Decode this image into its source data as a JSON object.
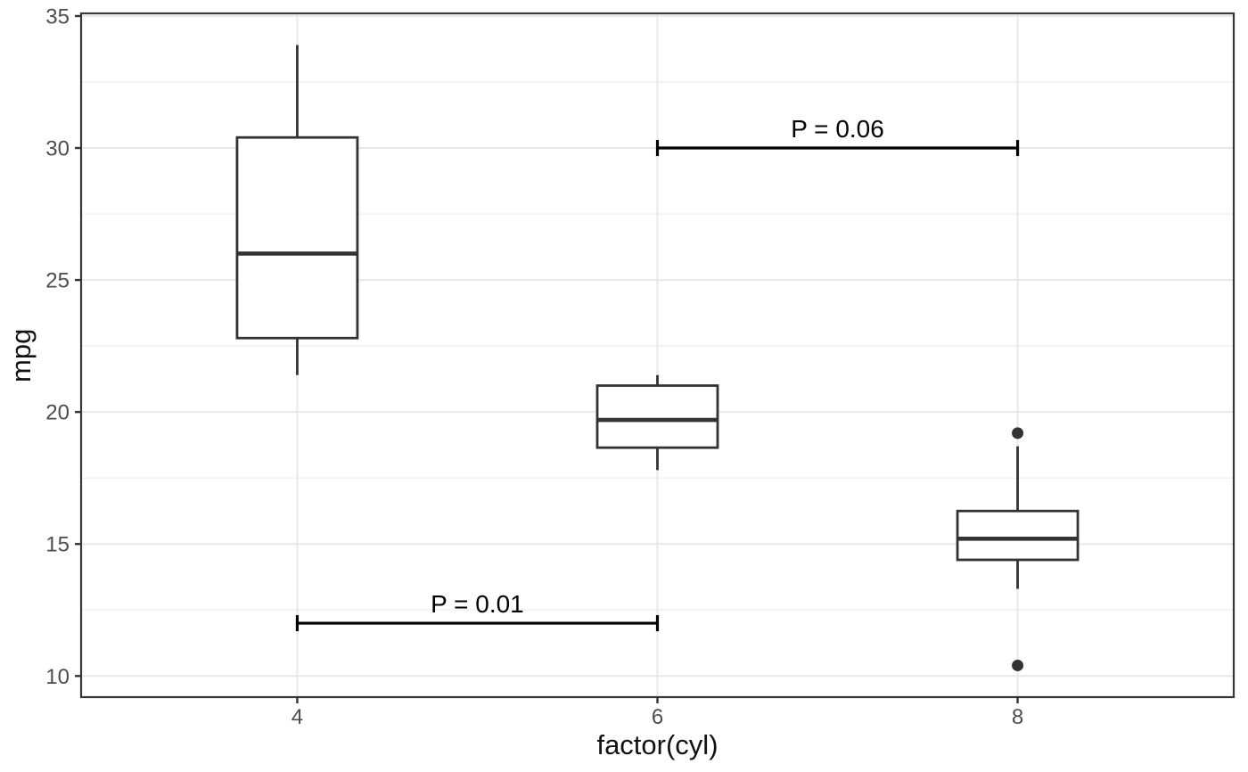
{
  "chart_data": {
    "type": "boxplot",
    "title": "",
    "xlabel": "factor(cyl)",
    "ylabel": "mpg",
    "categories": [
      "4",
      "6",
      "8"
    ],
    "ylim": [
      9.2,
      35.1
    ],
    "yticks": [
      10,
      15,
      20,
      25,
      30,
      35
    ],
    "yticks_minor": [
      12.5,
      17.5,
      22.5,
      27.5,
      32.5
    ],
    "grid": "major-and-minor-horizontal, major-vertical-at-categories",
    "legend": "none",
    "boxes": [
      {
        "category": "4",
        "lower_whisker": 21.4,
        "q1": 22.8,
        "median": 26.0,
        "q3": 30.4,
        "upper_whisker": 33.9,
        "outliers": []
      },
      {
        "category": "6",
        "lower_whisker": 17.8,
        "q1": 18.65,
        "median": 19.7,
        "q3": 21.0,
        "upper_whisker": 21.4,
        "outliers": []
      },
      {
        "category": "8",
        "lower_whisker": 13.3,
        "q1": 14.4,
        "median": 15.2,
        "q3": 16.25,
        "upper_whisker": 18.7,
        "outliers": [
          19.2,
          10.4
        ]
      }
    ],
    "annotations": [
      {
        "label": "P = 0.01",
        "from_category": "4",
        "to_category": "6",
        "y": 12
      },
      {
        "label": "P = 0.06",
        "from_category": "6",
        "to_category": "8",
        "y": 30
      }
    ],
    "colors": {
      "background": "#ffffff",
      "panel_background": "#ffffff",
      "panel_border": "#383838",
      "grid_major": "#e8e8e8",
      "grid_minor": "#f2f2f2",
      "box_stroke": "#333333",
      "box_fill": "#ffffff",
      "outlier_fill": "#333333",
      "tick_mark": "#333333",
      "tick_label": "#4d4d4d",
      "annotation": "#000000",
      "axis_title": "#111111"
    }
  }
}
